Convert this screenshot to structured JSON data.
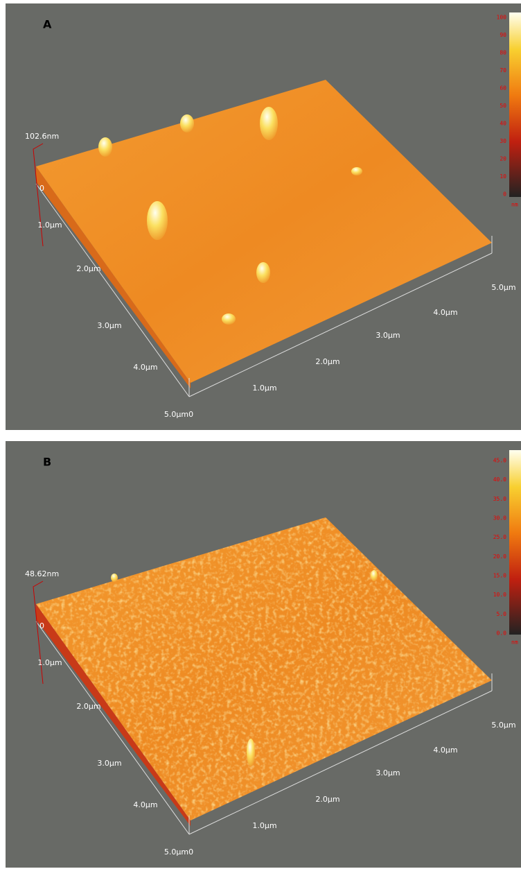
{
  "panels": [
    {
      "label": "A",
      "z_label": "102.6nm",
      "left_axis": [
        "0",
        "1.0µm",
        "2.0µm",
        "3.0µm",
        "4.0µm",
        "5.0µm0"
      ],
      "right_axis": [
        "1.0µm",
        "2.0µm",
        "3.0µm",
        "4.0µm",
        "5.0µm"
      ],
      "colorbar": [
        "100",
        "90",
        "80",
        "70",
        "60",
        "50",
        "40",
        "30",
        "20",
        "10",
        "0"
      ],
      "colorbar_unit": "nm"
    },
    {
      "label": "B",
      "z_label": "48.62nm",
      "left_axis": [
        "0",
        "1.0µm",
        "2.0µm",
        "3.0µm",
        "4.0µm",
        "5.0µm0"
      ],
      "right_axis": [
        "1.0µm",
        "2.0µm",
        "3.0µm",
        "4.0µm",
        "5.0µm"
      ],
      "colorbar": [
        "45.0",
        "40.0",
        "35.0",
        "30.0",
        "25.0",
        "20.0",
        "15.0",
        "10.0",
        "5.0",
        "0.0"
      ],
      "colorbar_unit": "nm"
    }
  ]
}
